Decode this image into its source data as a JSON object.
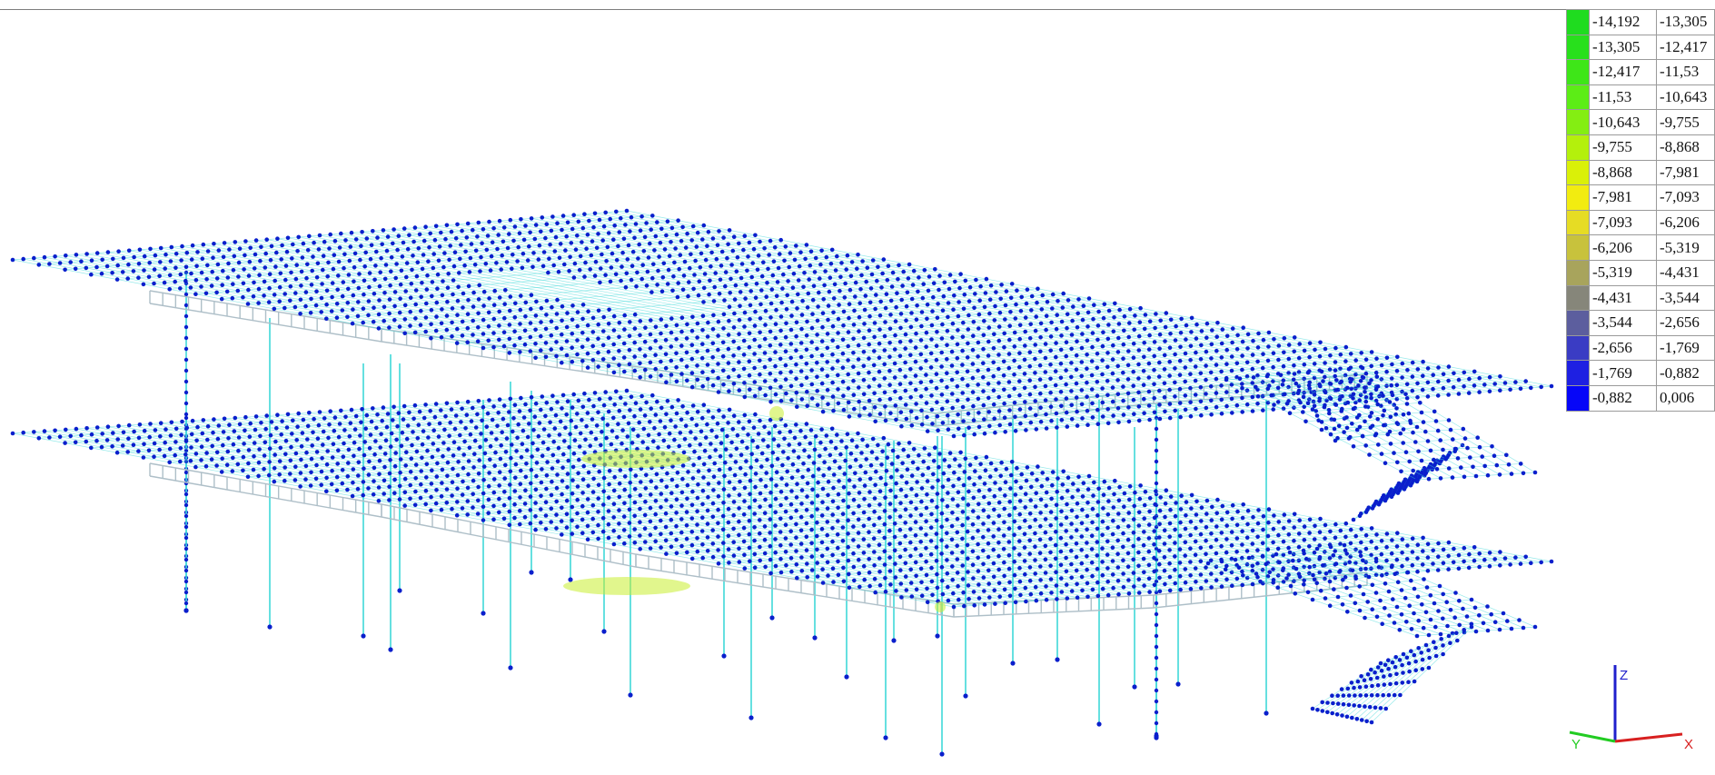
{
  "legend": {
    "rows": [
      {
        "from": "-14,192",
        "to": "-13,305",
        "color": "#1fdc1f"
      },
      {
        "from": "-13,305",
        "to": "-12,417",
        "color": "#28e01c"
      },
      {
        "from": "-12,417",
        "to": "-11,53",
        "color": "#3ee618"
      },
      {
        "from": "-11,53",
        "to": "-10,643",
        "color": "#5ced16"
      },
      {
        "from": "-10,643",
        "to": "-9,755",
        "color": "#84ee12"
      },
      {
        "from": "-9,755",
        "to": "-8,868",
        "color": "#b4f00c"
      },
      {
        "from": "-8,868",
        "to": "-7,981",
        "color": "#daf008"
      },
      {
        "from": "-7,981",
        "to": "-7,093",
        "color": "#f2ec10"
      },
      {
        "from": "-7,093",
        "to": "-6,206",
        "color": "#e6dc24"
      },
      {
        "from": "-6,206",
        "to": "-5,319",
        "color": "#c8c23c"
      },
      {
        "from": "-5,319",
        "to": "-4,431",
        "color": "#a8a45c"
      },
      {
        "from": "-4,431",
        "to": "-3,544",
        "color": "#86867a"
      },
      {
        "from": "-3,544",
        "to": "-2,656",
        "color": "#5c5e9e"
      },
      {
        "from": "-2,656",
        "to": "-1,769",
        "color": "#3a3cc4"
      },
      {
        "from": "-1,769",
        "to": "-0,882",
        "color": "#1e20e2"
      },
      {
        "from": "-0,882",
        "to": "0,006",
        "color": "#0606f8"
      }
    ]
  },
  "axes": {
    "x_label": "X",
    "y_label": "Y",
    "z_label": "Z"
  },
  "colors": {
    "node": "#0a1fcc",
    "member": "#3fd8d8",
    "beam": "#aebfc8",
    "hotspot": "#c8ee30",
    "axis_x": "#d82020",
    "axis_y": "#22cc22",
    "axis_z": "#2020cc"
  }
}
